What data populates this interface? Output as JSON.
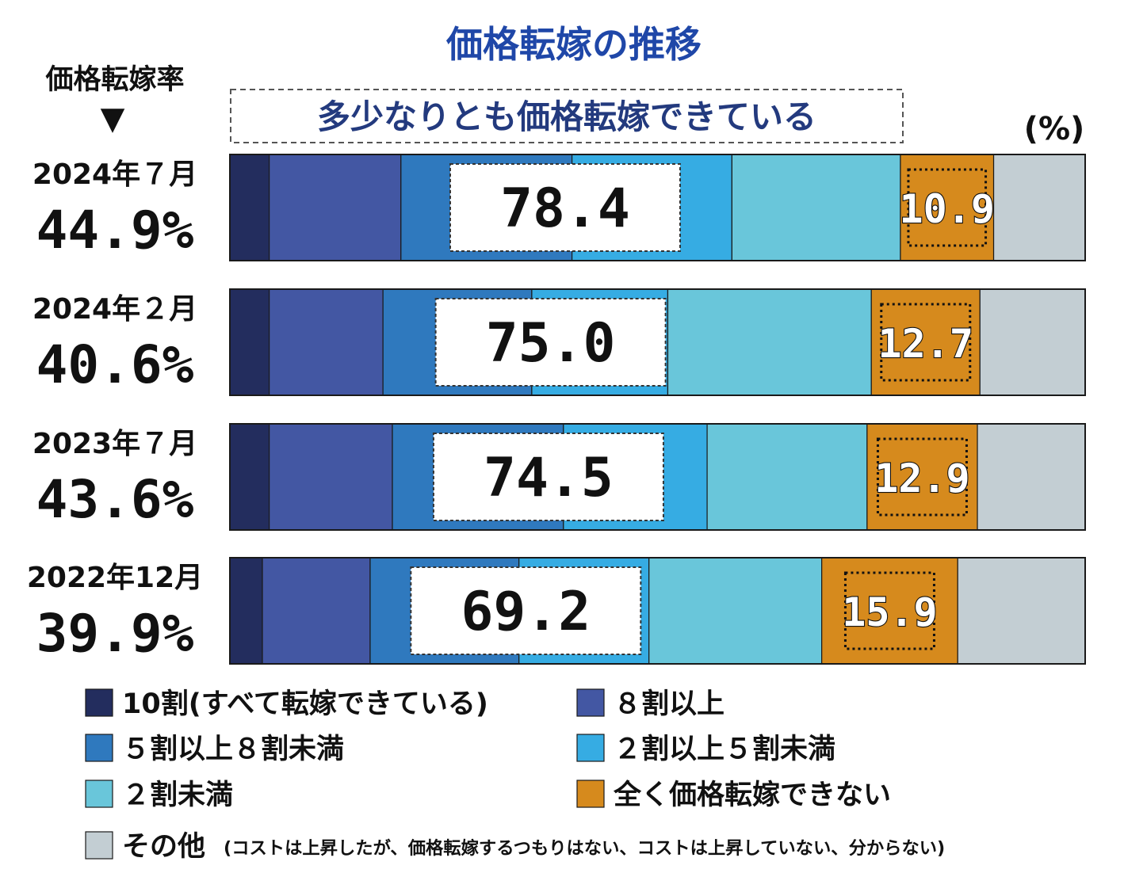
{
  "header": {
    "title": "価格転嫁の推移",
    "rate_header": "価格転嫁率",
    "rate_arrow": "▼",
    "banner": "多少なりとも価格転嫁できている",
    "unit": "(%)"
  },
  "chart_data": {
    "type": "bar",
    "orientation": "horizontal-stacked-100",
    "title": "価格転嫁の推移",
    "categories": [
      "2024年７月",
      "2024年２月",
      "2023年７月",
      "2022年12月"
    ],
    "rates": [
      "44.9%",
      "40.6%",
      "43.6%",
      "39.9%"
    ],
    "series": [
      {
        "name": "10割(すべて転嫁できている)",
        "color": "#232d5e",
        "values": [
          4.6,
          4.6,
          4.6,
          3.8
        ]
      },
      {
        "name": "８割以上",
        "color": "#4357a3",
        "values": [
          15.4,
          13.3,
          14.4,
          12.6
        ]
      },
      {
        "name": "５割以上８割未満",
        "color": "#2f79be",
        "values": [
          20.0,
          17.4,
          20.0,
          17.4
        ]
      },
      {
        "name": "２割以上５割未満",
        "color": "#36ace3",
        "values": [
          18.7,
          15.9,
          16.8,
          15.2
        ]
      },
      {
        "name": "２割未満",
        "color": "#69c6da",
        "values": [
          19.7,
          23.8,
          18.7,
          20.2
        ]
      },
      {
        "name": "全く価格転嫁できない",
        "color": "#d68a1d",
        "values": [
          10.9,
          12.7,
          12.9,
          15.9
        ]
      },
      {
        "name": "その他",
        "color": "#c3ced3",
        "values": [
          10.7,
          12.3,
          12.6,
          14.9
        ]
      }
    ],
    "group_totals": [
      "78.4",
      "75.0",
      "74.5",
      "69.2"
    ],
    "none_labels": [
      "10.9",
      "12.7",
      "12.9",
      "15.9"
    ],
    "xlim": [
      0,
      100
    ],
    "unit": "(%)"
  },
  "legend": {
    "items": [
      {
        "label": "10割(すべて転嫁できている)",
        "color": "#232d5e"
      },
      {
        "label": "８割以上",
        "color": "#4357a3"
      },
      {
        "label": "５割以上８割未満",
        "color": "#2f79be"
      },
      {
        "label": "２割以上５割未満",
        "color": "#36ace3"
      },
      {
        "label": "２割未満",
        "color": "#69c6da"
      },
      {
        "label": "全く価格転嫁できない",
        "color": "#d68a1d"
      },
      {
        "label": "その他",
        "color": "#c3ced3"
      }
    ],
    "other_note": "(コストは上昇したが、価格転嫁するつもりはない、コストは上昇していない、分からない)"
  }
}
